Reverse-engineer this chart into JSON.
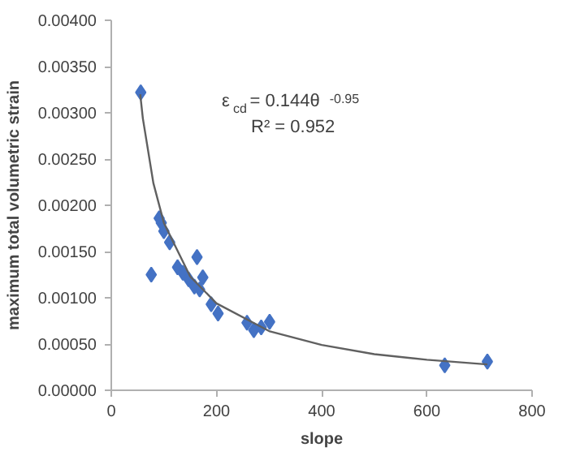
{
  "chart_data": {
    "type": "scatter",
    "xlabel": "slope",
    "ylabel": "maximum total volumetric strain",
    "xlim": [
      0,
      800
    ],
    "xticks": [
      0,
      200,
      400,
      600,
      800
    ],
    "ylim": [
      0,
      0.004
    ],
    "yticks": [
      {
        "value": 0,
        "label": "0.00000"
      },
      {
        "value": 0.0005,
        "label": "0.00050"
      },
      {
        "value": 0.001,
        "label": "0.00100"
      },
      {
        "value": 0.0015,
        "label": "0.00150"
      },
      {
        "value": 0.002,
        "label": "0.00200"
      },
      {
        "value": 0.0025,
        "label": "0.00250"
      },
      {
        "value": 0.003,
        "label": "0.00300"
      },
      {
        "value": 0.0035,
        "label": "0.00350"
      },
      {
        "value": 0.004,
        "label": "0.00400"
      }
    ],
    "grid": false,
    "marker": "diamond",
    "annotations": [
      "ε$_{cd}$= 0.144θ$^{-0.95}$",
      "R² = 0.952"
    ],
    "series": [
      {
        "color": "#4472c4",
        "x": [
          56,
          76,
          91,
          95,
          100,
          111,
          126,
          136,
          147,
          163,
          158,
          174,
          168,
          190,
          203,
          258,
          271,
          285,
          301,
          634,
          715
        ],
        "values": [
          0.00322,
          0.00125,
          0.00186,
          0.00181,
          0.00172,
          0.0016,
          0.00133,
          0.00127,
          0.0012,
          0.00144,
          0.00112,
          0.00122,
          0.00109,
          0.00093,
          0.00083,
          0.00073,
          0.00065,
          0.00068,
          0.00074,
          0.00027,
          0.00031
        ]
      },
      {
        "type": "line",
        "color": "#606060",
        "marker": "none",
        "line_style": "solid",
        "x": [
          55,
          60,
          80,
          100,
          150,
          200,
          300,
          400,
          500,
          600,
          715
        ],
        "values": [
          0.0032,
          0.00294,
          0.00224,
          0.00181,
          0.00123,
          0.00094,
          0.00064,
          0.00049,
          0.00039,
          0.00033,
          0.00028
        ]
      }
    ]
  }
}
